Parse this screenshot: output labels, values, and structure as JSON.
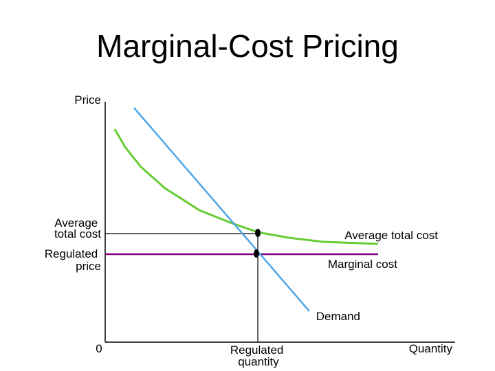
{
  "title": "Marginal-Cost Pricing",
  "axes": {
    "y_label": "Price",
    "x_label": "Quantity",
    "origin_label": "0",
    "y_ticks": [
      {
        "lines": [
          "Average",
          "total cost"
        ]
      },
      {
        "lines": [
          "Regulated",
          "price"
        ]
      }
    ],
    "x_ticks": [
      {
        "lines": [
          "Regulated",
          "quantity"
        ]
      }
    ]
  },
  "curves": {
    "average_total_cost": {
      "label": "Average total cost",
      "color": "#66cc33"
    },
    "marginal_cost": {
      "label": "Marginal cost",
      "color": "#800080"
    },
    "demand": {
      "label": "Demand",
      "color": "#4da6e8"
    }
  },
  "guide_color": "#000000"
}
